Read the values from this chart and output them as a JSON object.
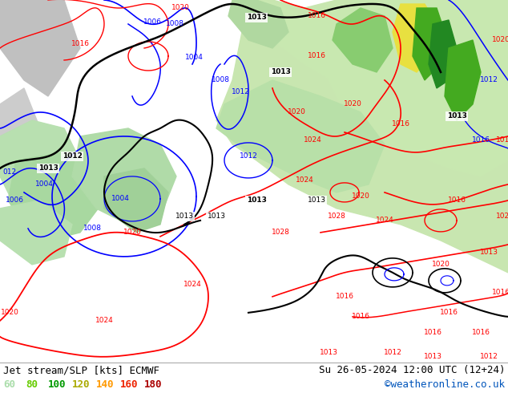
{
  "title_left": "Jet stream/SLP [kts] ECMWF",
  "title_right": "Su 26-05-2024 12:00 UTC (12+24)",
  "credit": "©weatheronline.co.uk",
  "legend_values": [
    "60",
    "80",
    "100",
    "120",
    "140",
    "160",
    "180"
  ],
  "legend_colors": [
    "#aaddaa",
    "#66cc00",
    "#009900",
    "#cccc00",
    "#ff9900",
    "#ff3300",
    "#cc0000"
  ],
  "bg_color": "#ffffff",
  "ocean_color": "#e8e8e8",
  "land_color": "#c8e6b0",
  "title_font_size": 9,
  "credit_color": "#0055bb"
}
